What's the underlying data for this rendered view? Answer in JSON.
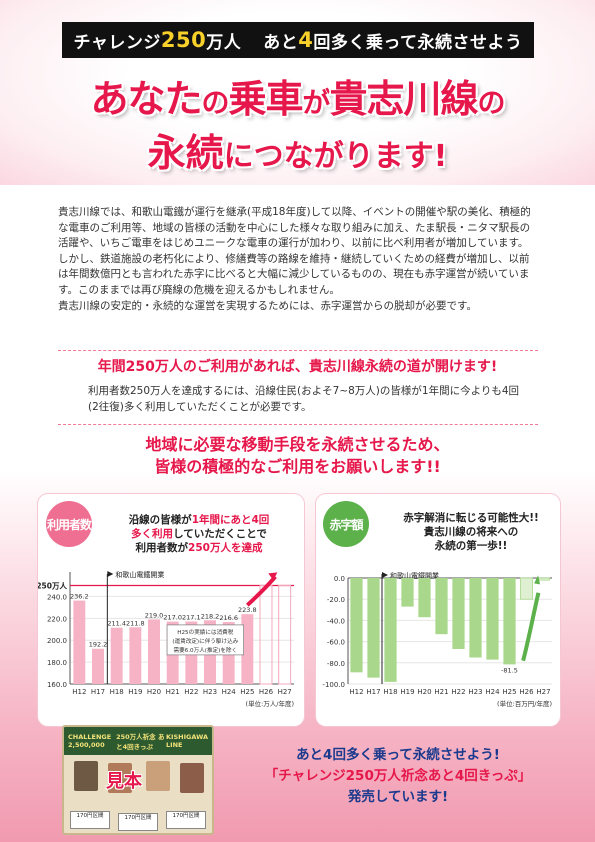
{
  "banner": {
    "pre": "チャレンジ",
    "num": "250",
    "unit": "万人",
    "mid1": "あと",
    "num2": "4",
    "mid2": "回多く乗って永続させよう"
  },
  "headline": {
    "line1": [
      {
        "t": "あなた",
        "big": true
      },
      {
        "t": "の",
        "big": false
      },
      {
        "t": "乗車",
        "big": true
      },
      {
        "t": "が",
        "big": false
      },
      {
        "t": "貴志川線",
        "big": true
      },
      {
        "t": "の",
        "big": false
      }
    ],
    "line2": [
      {
        "t": "永続",
        "big": true
      },
      {
        "t": "につながります!",
        "big": false
      }
    ]
  },
  "intro": [
    "貴志川線では、和歌山電鐵が運行を継承(平成18年度)して以降、イベントの開催や駅の美化、積極的な電車のご利用等、地域の皆様の活動を中心にした様々な取り組みに加え、たま駅長・ニタマ駅長の活躍や、いちご電車をはじめユニークな電車の運行が加わり、以前に比べ利用者が増加しています。",
    "しかし、鉄道施設の老朽化により、修繕費等の路線を維持・継続していくための経費が増加し、以前は年間数億円とも言われた赤字に比べると大幅に減少しているものの、現在も赤字運営が続いています。このままでは再び廃線の危機を迎えるかもしれません。",
    "貴志川線の安定的・永続的な運営を実現するためには、赤字運営からの脱却が必要です。"
  ],
  "subhead1": "年間250万人のご利用があれば、貴志川線永続の道が開けます!",
  "sub_para": "利用者数250万人を達成するには、沿線住民(およそ7~8万人)の皆様が1年間に今よりも4回(2往復)多く利用していただくことが必要です。",
  "appeal": [
    "地域に必要な移動手段を永続させるため、",
    "皆様の積極的なご利用をお願いします!!"
  ],
  "left_panel": {
    "badge": "利用者数",
    "note_l1a": "沿線の皆様が",
    "note_l1b": "1年間にあと4回",
    "note_l2a": "多く利用",
    "note_l2b": "していただくことで",
    "note_l3a": "利用者数が",
    "note_l3b": "250万人を達成",
    "marker": "和歌山電鐵開業",
    "callout": [
      "H25の実績には消費税",
      "(運賃改定)に伴う駆け込み",
      "需要6.0万人(推定)を除く"
    ],
    "unit_note": "(単位:万人/年度)"
  },
  "right_panel": {
    "badge": "赤字額",
    "note": [
      "赤字解消に転じる可能性大!!",
      "貴志川線の将来への",
      "永続の第一歩!!"
    ],
    "marker": "和歌山電鐵開業",
    "unit_note": "(単位:百万円/年度)"
  },
  "chart_data": [
    {
      "type": "bar",
      "categories": [
        "H12",
        "H17",
        "H18",
        "H19",
        "H20",
        "H21",
        "H22",
        "H23",
        "H24",
        "H25",
        "H26",
        "H27"
      ],
      "values": [
        236.2,
        192.2,
        211.4,
        211.8,
        219.0,
        217.0,
        217.1,
        218.2,
        216.6,
        223.8,
        null,
        null
      ],
      "value_labels": [
        "236.2",
        "192.2",
        "211.4",
        "211.8",
        "219.0",
        "217.0",
        "217.1",
        "218.2",
        "216.6",
        "223.8",
        "",
        ""
      ],
      "target_label": "250万人",
      "target": 250,
      "yticks": [
        "160.0",
        "180.0",
        "200.0",
        "220.0",
        "240.0"
      ],
      "ylim": [
        160,
        255
      ],
      "colors": {
        "bar": "#f7b3c6",
        "target": "#e6174a"
      }
    },
    {
      "type": "bar",
      "categories": [
        "H12",
        "H17",
        "H18",
        "H19",
        "H20",
        "H21",
        "H22",
        "H23",
        "H24",
        "H25",
        "H26",
        "H27"
      ],
      "values": [
        -89,
        -94,
        -98,
        -27,
        -37,
        -53,
        -67,
        -75,
        -77,
        -81.5,
        -20,
        -2
      ],
      "value_labels": [
        "",
        "",
        "",
        "",
        "",
        "",
        "",
        "",
        "",
        "-81.5",
        "",
        ""
      ],
      "yticks": [
        "0.0",
        "-20.0",
        "-40.0",
        "-60.0",
        "-80.0",
        "-100.0"
      ],
      "ylim": [
        -100,
        0
      ],
      "colors": {
        "bar": "#a9d88c",
        "arrow": "#5cb14a"
      }
    }
  ],
  "ticket": {
    "title_l": "CHALLENGE 2,500,000",
    "title_c": "250万人祈念 あと4回きっぷ",
    "title_r": "KISHIGAWA LINE",
    "mihon": "見本",
    "stub": "170円区間"
  },
  "promo": [
    "あと4回多く乗って永続させよう!",
    "「チャレンジ250万人祈念あと4回きっぷ」",
    "発売しています!"
  ]
}
